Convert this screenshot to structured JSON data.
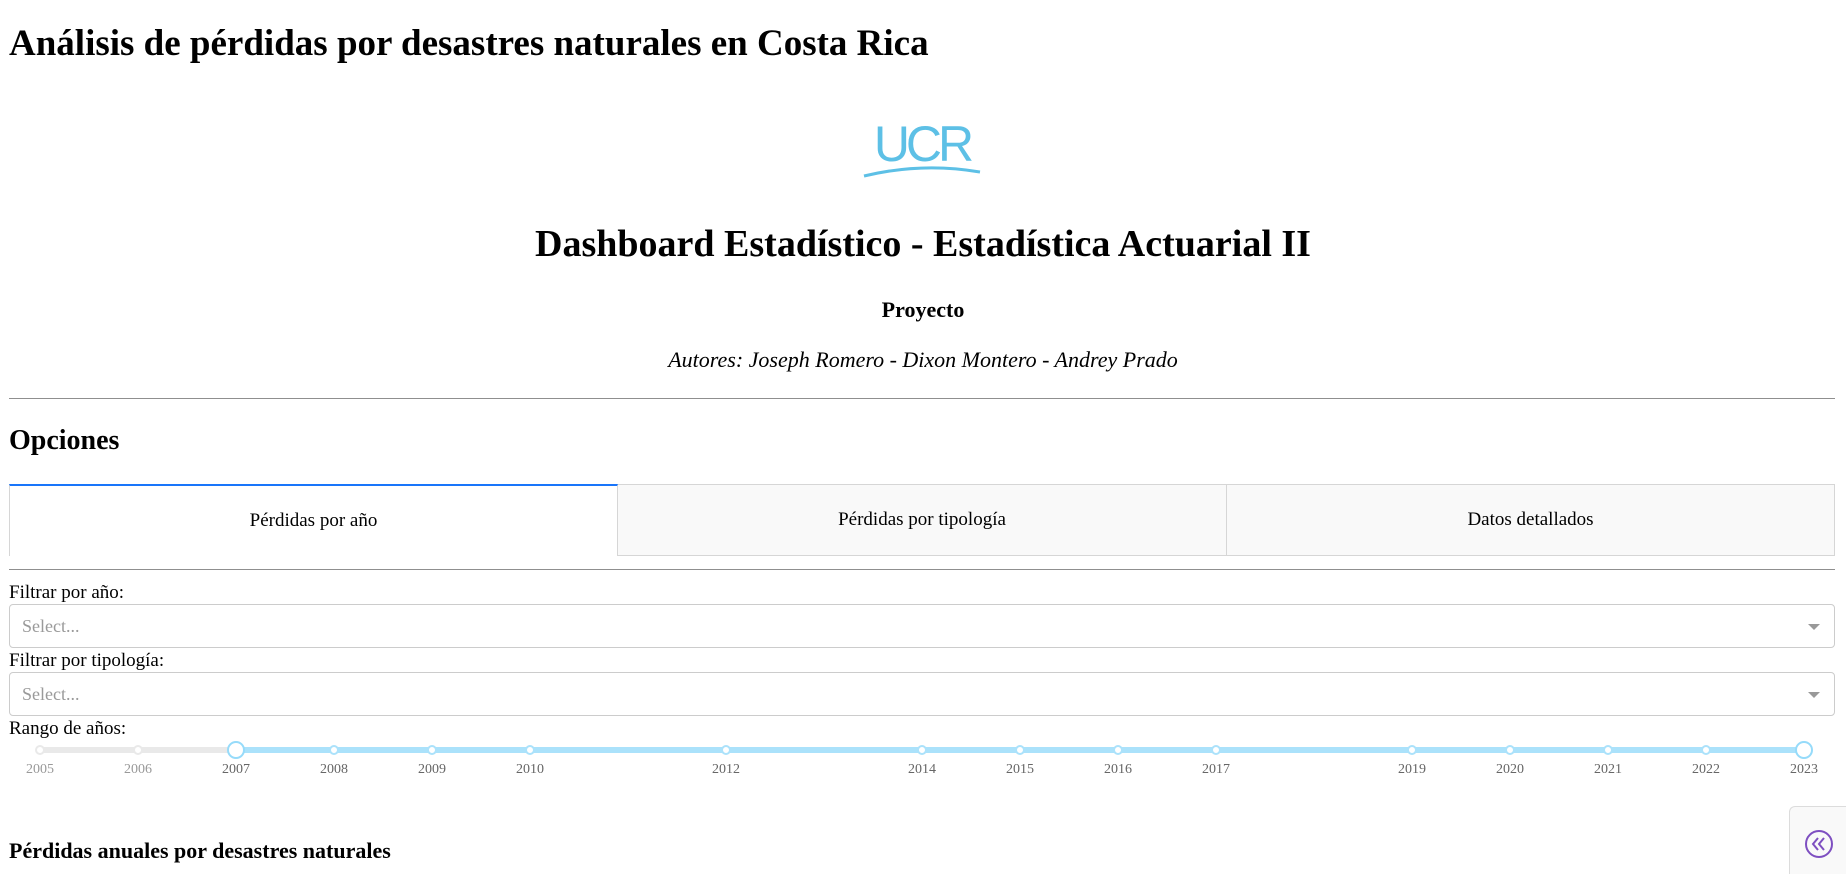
{
  "page_title": "Análisis de pérdidas por desastres naturales en Costa Rica",
  "logo": {
    "text": "UCR",
    "icon": "ucr-logo",
    "color": "#5dc0e6"
  },
  "dashboard_title": "Dashboard Estadístico - Estadística Actuarial II",
  "project_label": "Proyecto",
  "authors": "Autores: Joseph Romero - Dixon Montero - Andrey Prado",
  "options_heading": "Opciones",
  "tabs": [
    {
      "label": "Pérdidas por año",
      "active": true
    },
    {
      "label": "Pérdidas por tipología",
      "active": false
    },
    {
      "label": "Datos detallados",
      "active": false
    }
  ],
  "filters": {
    "year": {
      "label": "Filtrar por año:",
      "placeholder": "Select...",
      "value": ""
    },
    "typology": {
      "label": "Filtrar por tipología:",
      "placeholder": "Select...",
      "value": ""
    }
  },
  "range": {
    "label": "Rango de años:",
    "min": 2005,
    "max": 2023,
    "selected": [
      2007,
      2023
    ],
    "marks": [
      "2005",
      "2006",
      "2007",
      "2008",
      "2009",
      "2010",
      "2012",
      "2014",
      "2015",
      "2016",
      "2017",
      "2019",
      "2020",
      "2021",
      "2022",
      "2023"
    ],
    "accent": "#abe2fb"
  },
  "section_heading": "Pérdidas anuales por desastres naturales",
  "collapse_button": {
    "icon": "double-chevron-left-icon",
    "color": "#7e4fc1"
  },
  "colors": {
    "tab_active": "#1975fa",
    "placeholder": "#9a9a9a"
  }
}
